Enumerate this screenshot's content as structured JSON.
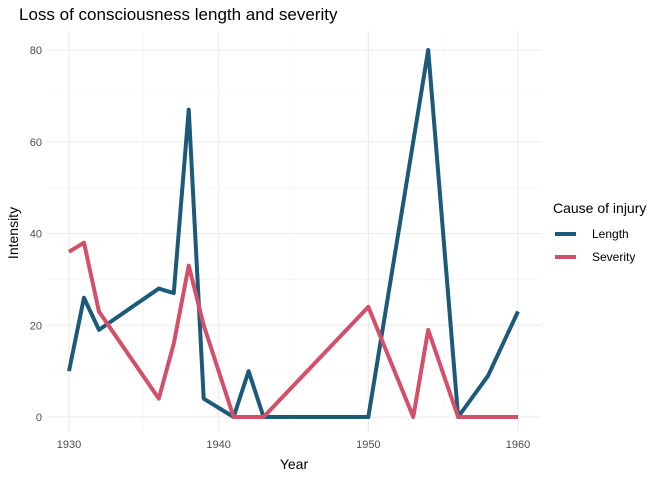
{
  "chart_data": {
    "type": "line",
    "title": "Loss of consciousness length and severity",
    "xlabel": "Year",
    "ylabel": "Intensity",
    "xlim": [
      1929.5,
      1961.5
    ],
    "ylim": [
      -4,
      84
    ],
    "xticks": [
      1930,
      1940,
      1950,
      1960
    ],
    "yticks": [
      0,
      20,
      40,
      60,
      80
    ],
    "grid": true,
    "legend": {
      "title": "Cause of injury",
      "position": "right"
    },
    "series": [
      {
        "name": "Length",
        "color": "#1b5a78",
        "x": [
          1930,
          1931,
          1932,
          1936,
          1937,
          1938,
          1939,
          1941,
          1942,
          1943,
          1950,
          1954,
          1956,
          1958,
          1960
        ],
        "y": [
          10,
          26,
          19,
          28,
          27,
          67,
          4,
          0,
          10,
          0,
          0,
          80,
          0,
          9,
          23
        ]
      },
      {
        "name": "Severity",
        "color": "#d44f69",
        "x": [
          1930,
          1931,
          1932,
          1936,
          1937,
          1938,
          1939,
          1941,
          1943,
          1950,
          1953,
          1954,
          1956,
          1960
        ],
        "y": [
          36,
          38,
          23,
          4,
          16,
          33,
          20,
          0,
          0,
          24,
          0,
          19,
          0,
          0
        ]
      }
    ]
  }
}
